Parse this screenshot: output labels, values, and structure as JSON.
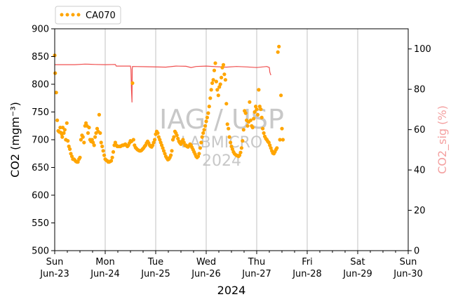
{
  "chart_data": {
    "type": "scatter",
    "title": "",
    "xlabel": "2024",
    "ylabel": "CO2 (mgm⁻³)",
    "ylabel_right": "CO2_sig (%)",
    "x_range": [
      "2024-06-23T00:00",
      "2024-06-30T00:00"
    ],
    "ylim": [
      500,
      900
    ],
    "ylim_right": [
      0,
      110
    ],
    "y_ticks": [
      500,
      550,
      600,
      650,
      700,
      750,
      800,
      850,
      900
    ],
    "y_ticks_right": [
      0,
      20,
      40,
      60,
      80,
      100
    ],
    "x_ticks": [
      {
        "day": "Sun",
        "date": "Jun-23"
      },
      {
        "day": "Mon",
        "date": "Jun-24"
      },
      {
        "day": "Tue",
        "date": "Jun-25"
      },
      {
        "day": "Wed",
        "date": "Jun-26"
      },
      {
        "day": "Thu",
        "date": "Jun-27"
      },
      {
        "day": "Fri",
        "date": "Jun-28"
      },
      {
        "day": "Sat",
        "date": "Jun-29"
      },
      {
        "day": "Sun",
        "date": "Jun-30"
      }
    ],
    "grid": "vertical lines at day boundaries",
    "legend_placement": "top-left, above axes",
    "watermark": {
      "line1": "IAG / USP",
      "line2": "LABMICRO",
      "line3": "2024"
    },
    "series": [
      {
        "name": "CA070",
        "axis": "left",
        "color": "#FFA500",
        "marker": "circle",
        "points": [
          [
            0.0,
            852
          ],
          [
            0.01,
            820
          ],
          [
            0.03,
            785
          ],
          [
            0.05,
            735
          ],
          [
            0.07,
            716
          ],
          [
            0.09,
            714
          ],
          [
            0.11,
            722
          ],
          [
            0.12,
            713
          ],
          [
            0.14,
            710
          ],
          [
            0.15,
            705
          ],
          [
            0.16,
            722
          ],
          [
            0.18,
            712
          ],
          [
            0.2,
            718
          ],
          [
            0.22,
            700
          ],
          [
            0.24,
            730
          ],
          [
            0.26,
            698
          ],
          [
            0.28,
            688
          ],
          [
            0.3,
            683
          ],
          [
            0.32,
            675
          ],
          [
            0.34,
            670
          ],
          [
            0.36,
            665
          ],
          [
            0.38,
            665
          ],
          [
            0.4,
            663
          ],
          [
            0.42,
            661
          ],
          [
            0.44,
            660
          ],
          [
            0.46,
            660
          ],
          [
            0.48,
            665
          ],
          [
            0.5,
            668
          ],
          [
            0.52,
            700
          ],
          [
            0.54,
            708
          ],
          [
            0.56,
            705
          ],
          [
            0.58,
            695
          ],
          [
            0.6,
            725
          ],
          [
            0.62,
            730
          ],
          [
            0.64,
            725
          ],
          [
            0.66,
            712
          ],
          [
            0.68,
            722
          ],
          [
            0.7,
            700
          ],
          [
            0.72,
            697
          ],
          [
            0.74,
            700
          ],
          [
            0.76,
            695
          ],
          [
            0.78,
            690
          ],
          [
            0.8,
            705
          ],
          [
            0.82,
            712
          ],
          [
            0.84,
            720
          ],
          [
            0.86,
            715
          ],
          [
            0.88,
            745
          ],
          [
            0.9,
            712
          ],
          [
            0.92,
            695
          ],
          [
            0.94,
            688
          ],
          [
            0.96,
            680
          ],
          [
            0.98,
            672
          ],
          [
            1.0,
            665
          ],
          [
            1.02,
            663
          ],
          [
            1.04,
            662
          ],
          [
            1.06,
            660
          ],
          [
            1.08,
            660
          ],
          [
            1.1,
            661
          ],
          [
            1.12,
            662
          ],
          [
            1.14,
            668
          ],
          [
            1.16,
            678
          ],
          [
            1.18,
            690
          ],
          [
            1.2,
            695
          ],
          [
            1.22,
            690
          ],
          [
            1.24,
            688
          ],
          [
            1.26,
            688
          ],
          [
            1.28,
            688
          ],
          [
            1.3,
            688
          ],
          [
            1.32,
            689
          ],
          [
            1.34,
            690
          ],
          [
            1.36,
            690
          ],
          [
            1.38,
            691
          ],
          [
            1.4,
            692
          ],
          [
            1.42,
            690
          ],
          [
            1.44,
            688
          ],
          [
            1.46,
            690
          ],
          [
            1.48,
            694
          ],
          [
            1.5,
            698
          ],
          [
            1.52,
            697
          ],
          [
            1.54,
            802
          ],
          [
            1.56,
            700
          ],
          [
            1.58,
            690
          ],
          [
            1.6,
            686
          ],
          [
            1.62,
            684
          ],
          [
            1.64,
            682
          ],
          [
            1.66,
            681
          ],
          [
            1.68,
            680
          ],
          [
            1.7,
            680
          ],
          [
            1.72,
            681
          ],
          [
            1.74,
            683
          ],
          [
            1.76,
            685
          ],
          [
            1.78,
            688
          ],
          [
            1.8,
            690
          ],
          [
            1.82,
            694
          ],
          [
            1.84,
            697
          ],
          [
            1.86,
            694
          ],
          [
            1.88,
            690
          ],
          [
            1.9,
            688
          ],
          [
            1.92,
            687
          ],
          [
            1.94,
            690
          ],
          [
            1.96,
            695
          ],
          [
            1.98,
            700
          ],
          [
            2.0,
            710
          ],
          [
            2.02,
            715
          ],
          [
            2.04,
            712
          ],
          [
            2.06,
            705
          ],
          [
            2.08,
            700
          ],
          [
            2.1,
            695
          ],
          [
            2.12,
            690
          ],
          [
            2.14,
            685
          ],
          [
            2.16,
            680
          ],
          [
            2.18,
            675
          ],
          [
            2.2,
            670
          ],
          [
            2.22,
            667
          ],
          [
            2.24,
            664
          ],
          [
            2.26,
            665
          ],
          [
            2.28,
            668
          ],
          [
            2.3,
            672
          ],
          [
            2.32,
            680
          ],
          [
            2.34,
            700
          ],
          [
            2.36,
            705
          ],
          [
            2.38,
            715
          ],
          [
            2.4,
            712
          ],
          [
            2.42,
            708
          ],
          [
            2.44,
            702
          ],
          [
            2.46,
            697
          ],
          [
            2.48,
            694
          ],
          [
            2.5,
            692
          ],
          [
            2.52,
            697
          ],
          [
            2.54,
            700
          ],
          [
            2.56,
            695
          ],
          [
            2.58,
            690
          ],
          [
            2.6,
            690
          ],
          [
            2.62,
            688
          ],
          [
            2.64,
            687
          ],
          [
            2.66,
            689
          ],
          [
            2.68,
            692
          ],
          [
            2.7,
            690
          ],
          [
            2.72,
            686
          ],
          [
            2.74,
            682
          ],
          [
            2.76,
            678
          ],
          [
            2.78,
            674
          ],
          [
            2.8,
            670
          ],
          [
            2.82,
            668
          ],
          [
            2.84,
            670
          ],
          [
            2.86,
            675
          ],
          [
            2.88,
            685
          ],
          [
            2.9,
            695
          ],
          [
            2.92,
            705
          ],
          [
            2.94,
            712
          ],
          [
            2.96,
            718
          ],
          [
            2.98,
            725
          ],
          [
            3.0,
            733
          ],
          [
            3.02,
            740
          ],
          [
            3.04,
            748
          ],
          [
            3.06,
            760
          ],
          [
            3.08,
            775
          ],
          [
            3.1,
            790
          ],
          [
            3.12,
            802
          ],
          [
            3.14,
            808
          ],
          [
            3.16,
            825
          ],
          [
            3.18,
            838
          ],
          [
            3.2,
            805
          ],
          [
            3.22,
            790
          ],
          [
            3.24,
            780
          ],
          [
            3.26,
            795
          ],
          [
            3.28,
            800
          ],
          [
            3.3,
            812
          ],
          [
            3.32,
            830
          ],
          [
            3.34,
            835
          ],
          [
            3.36,
            818
          ],
          [
            3.38,
            808
          ],
          [
            3.4,
            765
          ],
          [
            3.42,
            728
          ],
          [
            3.44,
            720
          ],
          [
            3.46,
            705
          ],
          [
            3.48,
            695
          ],
          [
            3.5,
            688
          ],
          [
            3.52,
            683
          ],
          [
            3.54,
            678
          ],
          [
            3.56,
            675
          ],
          [
            3.58,
            673
          ],
          [
            3.6,
            672
          ],
          [
            3.62,
            671
          ],
          [
            3.64,
            670
          ],
          [
            3.66,
            672
          ],
          [
            3.68,
            677
          ],
          [
            3.7,
            685
          ],
          [
            3.72,
            698
          ],
          [
            3.74,
            718
          ],
          [
            3.76,
            752
          ],
          [
            3.78,
            748
          ],
          [
            3.8,
            735
          ],
          [
            3.82,
            725
          ],
          [
            3.84,
            732
          ],
          [
            3.86,
            768
          ],
          [
            3.88,
            735
          ],
          [
            3.9,
            725
          ],
          [
            3.92,
            722
          ],
          [
            3.94,
            738
          ],
          [
            3.96,
            750
          ],
          [
            3.98,
            760
          ],
          [
            4.0,
            755
          ],
          [
            4.02,
            745
          ],
          [
            4.04,
            790
          ],
          [
            4.06,
            760
          ],
          [
            4.08,
            755
          ],
          [
            4.1,
            740
          ],
          [
            4.12,
            720
          ],
          [
            4.14,
            712
          ],
          [
            4.16,
            706
          ],
          [
            4.18,
            702
          ],
          [
            4.2,
            700
          ],
          [
            4.22,
            697
          ],
          [
            4.24,
            695
          ],
          [
            4.26,
            690
          ],
          [
            4.28,
            685
          ],
          [
            4.3,
            680
          ],
          [
            4.32,
            676
          ],
          [
            4.34,
            675
          ],
          [
            4.36,
            678
          ],
          [
            4.38,
            682
          ],
          [
            4.4,
            685
          ],
          [
            4.42,
            858
          ],
          [
            4.44,
            868
          ],
          [
            4.46,
            700
          ],
          [
            4.48,
            780
          ],
          [
            4.5,
            720
          ],
          [
            4.52,
            700
          ]
        ]
      },
      {
        "name": "CO2_sig",
        "axis": "right",
        "color": "#F05050",
        "line_segments": [
          [
            [
              0.0,
              92.2
            ],
            [
              0.4,
              92.2
            ],
            [
              0.6,
              92.5
            ],
            [
              0.8,
              92.3
            ],
            [
              1.0,
              92.2
            ],
            [
              1.2,
              92.3
            ],
            [
              1.22,
              91.5
            ],
            [
              1.5,
              91.5
            ],
            [
              1.51,
              90.0
            ],
            [
              1.52,
              80.0
            ],
            [
              1.53,
              73.5
            ],
            [
              1.535,
              90.0
            ],
            [
              1.54,
              91.3
            ],
            [
              1.8,
              91.2
            ],
            [
              2.2,
              91.0
            ],
            [
              2.4,
              91.5
            ],
            [
              2.6,
              91.4
            ],
            [
              2.7,
              90.8
            ],
            [
              2.8,
              91.3
            ],
            [
              3.0,
              91.5
            ],
            [
              3.2,
              91.2
            ],
            [
              3.4,
              91.0
            ],
            [
              3.6,
              91.3
            ],
            [
              3.8,
              91.1
            ],
            [
              4.0,
              90.8
            ],
            [
              4.2,
              91.3
            ],
            [
              4.25,
              90.8
            ],
            [
              4.26,
              88.5
            ],
            [
              4.28,
              87.0
            ]
          ]
        ]
      }
    ]
  }
}
